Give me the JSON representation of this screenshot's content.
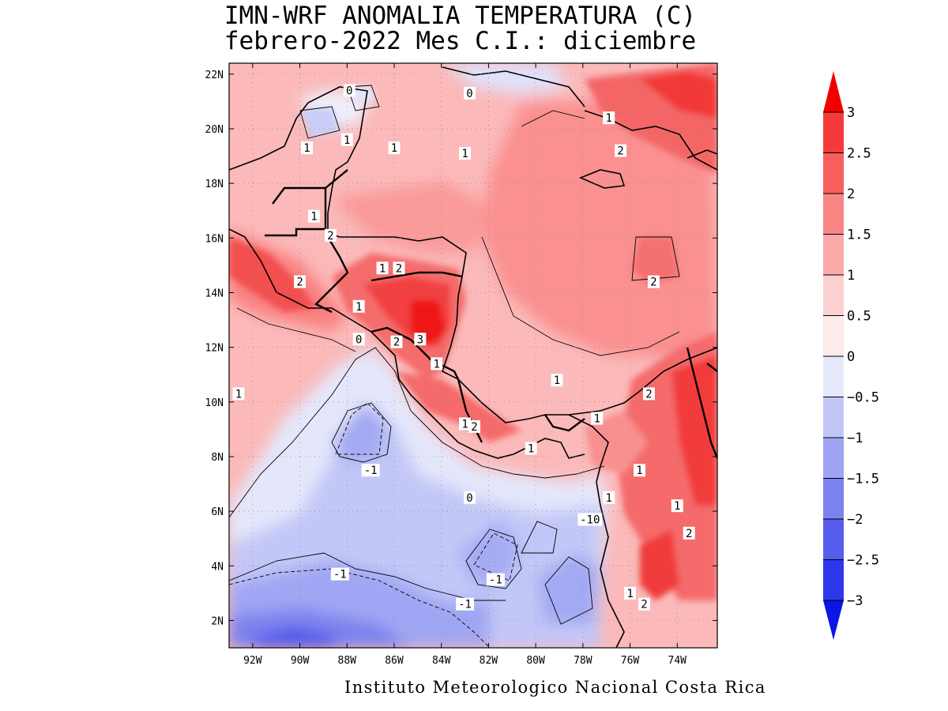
{
  "title_line1": "IMN-WRF  ANOMALIA TEMPERATURA (C)",
  "title_line2": "febrero-2022 Mes C.I.: diciembre",
  "footer": "Instituto Meteorologico Nacional Costa Rica",
  "map": {
    "lat_labels": [
      "22N",
      "20N",
      "18N",
      "16N",
      "14N",
      "12N",
      "10N",
      "8N",
      "6N",
      "4N",
      "2N"
    ],
    "lon_labels": [
      "92W",
      "90W",
      "88W",
      "86W",
      "84W",
      "82W",
      "80W",
      "78W",
      "76W",
      "74W"
    ],
    "contour_labels": [
      {
        "text": "0",
        "lon": -87.9,
        "lat": 21.4
      },
      {
        "text": "0",
        "lon": -82.8,
        "lat": 21.3
      },
      {
        "text": "1",
        "lon": -76.9,
        "lat": 20.4
      },
      {
        "text": "2",
        "lon": -76.4,
        "lat": 19.2
      },
      {
        "text": "1",
        "lon": -89.7,
        "lat": 19.3
      },
      {
        "text": "1",
        "lon": -88.0,
        "lat": 19.6
      },
      {
        "text": "1",
        "lon": -86.0,
        "lat": 19.3
      },
      {
        "text": "1",
        "lon": -83.0,
        "lat": 19.1
      },
      {
        "text": "1",
        "lon": -89.4,
        "lat": 16.8
      },
      {
        "text": "2",
        "lon": -88.7,
        "lat": 16.1
      },
      {
        "text": "1",
        "lon": -86.5,
        "lat": 14.9
      },
      {
        "text": "2",
        "lon": -85.8,
        "lat": 14.9
      },
      {
        "text": "2",
        "lon": -90.0,
        "lat": 14.4
      },
      {
        "text": "2",
        "lon": -75.0,
        "lat": 14.4
      },
      {
        "text": "1",
        "lon": -87.5,
        "lat": 13.5
      },
      {
        "text": "3",
        "lon": -84.9,
        "lat": 12.3
      },
      {
        "text": "0",
        "lon": -87.5,
        "lat": 12.3
      },
      {
        "text": "2",
        "lon": -85.9,
        "lat": 12.2
      },
      {
        "text": "1",
        "lon": -84.2,
        "lat": 11.4
      },
      {
        "text": "1",
        "lon": -79.1,
        "lat": 10.8
      },
      {
        "text": "1",
        "lon": -92.6,
        "lat": 10.3
      },
      {
        "text": "2",
        "lon": -75.2,
        "lat": 10.3
      },
      {
        "text": "1",
        "lon": -77.4,
        "lat": 9.4
      },
      {
        "text": "1",
        "lon": -83.0,
        "lat": 9.2
      },
      {
        "text": "2",
        "lon": -82.6,
        "lat": 9.1
      },
      {
        "text": "1",
        "lon": -80.2,
        "lat": 8.3
      },
      {
        "text": "-1",
        "lon": -87.0,
        "lat": 7.5
      },
      {
        "text": "1",
        "lon": -75.6,
        "lat": 7.5
      },
      {
        "text": "0",
        "lon": -82.8,
        "lat": 6.5
      },
      {
        "text": "1",
        "lon": -76.9,
        "lat": 6.5
      },
      {
        "text": "1",
        "lon": -74.0,
        "lat": 6.2
      },
      {
        "text": "-10",
        "lon": -77.7,
        "lat": 5.7
      },
      {
        "text": "2",
        "lon": -73.5,
        "lat": 5.2
      },
      {
        "text": "-1",
        "lon": -88.3,
        "lat": 3.7
      },
      {
        "text": "-1",
        "lon": -81.7,
        "lat": 3.5
      },
      {
        "text": "1",
        "lon": -76.0,
        "lat": 3.0
      },
      {
        "text": "2",
        "lon": -75.4,
        "lat": 2.6
      },
      {
        "text": "-1",
        "lon": -83.0,
        "lat": 2.6
      }
    ]
  },
  "colorbar": {
    "labels": [
      "3",
      "2.5",
      "2",
      "1.5",
      "1",
      "0.5",
      "0",
      "-0.5",
      "-1",
      "-1.5",
      "-2",
      "-2.5",
      "-3"
    ],
    "colors": [
      "#f20000",
      "#f53a3a",
      "#f86060",
      "#fa8585",
      "#fba9a9",
      "#fcd0d0",
      "#fdebeb",
      "#e6e9fb",
      "#c2c6f7",
      "#9ea4f3",
      "#7b82ef",
      "#565ded",
      "#2f37ea",
      "#0a16e6"
    ]
  }
}
